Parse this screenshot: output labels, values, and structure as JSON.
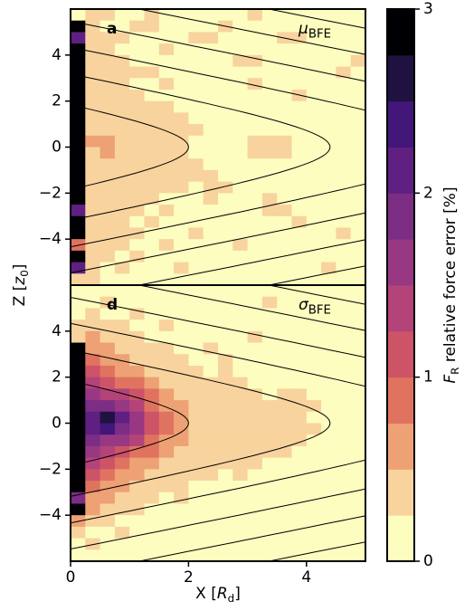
{
  "figure": {
    "xlabel": {
      "prefix": "X [",
      "symbol": "R",
      "subscript": "d",
      "suffix": "]"
    },
    "ylabel": {
      "prefix": "Z [",
      "symbol": "z",
      "subscript": "0",
      "suffix": "]"
    }
  },
  "chart_data": [
    {
      "type": "heatmap",
      "panel_label": "a",
      "annotation": {
        "symbol": "μ",
        "subscript": "BFE"
      },
      "xlim": [
        0,
        5
      ],
      "ylim": [
        -6,
        6
      ],
      "xticks": [
        0,
        2,
        4
      ],
      "show_xtick_labels": false,
      "yticks": [
        4,
        2,
        0,
        {
          "value": -2,
          "label": "−2"
        },
        {
          "value": -4,
          "label": "−4"
        }
      ],
      "x_edges": [
        0,
        0.25,
        0.5,
        0.75,
        1,
        1.25,
        1.5,
        1.75,
        2,
        2.25,
        2.5,
        2.75,
        3,
        3.25,
        3.5,
        3.75,
        4,
        4.25,
        4.5,
        4.75,
        5
      ],
      "z_edges": [
        6,
        5.5,
        5,
        4.5,
        4,
        3.5,
        3,
        2.5,
        2,
        1.5,
        1,
        0.5,
        0,
        -0.5,
        -1,
        -1.5,
        -2,
        -2.5,
        -3,
        -3.5,
        -4,
        -4.5,
        -5,
        -5.5,
        -6
      ],
      "values": [
        [
          0.1,
          0.35,
          0.35,
          0.1,
          0.1,
          0.35,
          0.1,
          0.1,
          0.1,
          0.1,
          0.1,
          0.1,
          0.35,
          0.1,
          0.1,
          0.1,
          0.1,
          0.1,
          0.1,
          0.1
        ],
        [
          3,
          0.35,
          0.1,
          0.1,
          0.35,
          0.35,
          0.1,
          0.1,
          0.1,
          0.1,
          0.35,
          0.1,
          0.1,
          0.1,
          0.1,
          0.1,
          0.1,
          0.1,
          0.1,
          0.1
        ],
        [
          2.1,
          0.35,
          0.35,
          0.35,
          0.1,
          0.1,
          0.1,
          0.1,
          0.35,
          0.35,
          0.1,
          0.1,
          0.1,
          0.1,
          0.35,
          0.35,
          0.1,
          0.1,
          0.1,
          0.1
        ],
        [
          3,
          0.35,
          0.35,
          0.1,
          0.1,
          0.1,
          0.35,
          0.1,
          0.1,
          0.1,
          0.1,
          0.1,
          0.1,
          0.1,
          0.1,
          0.1,
          0.1,
          0.1,
          0.1,
          0.1
        ],
        [
          3,
          0.35,
          0.35,
          0.35,
          0.1,
          0.1,
          0.1,
          0.1,
          0.1,
          0.1,
          0.1,
          0.35,
          0.35,
          0.1,
          0.1,
          0.1,
          0.1,
          0.1,
          0.1,
          0.35
        ],
        [
          3,
          0.35,
          0.35,
          0.35,
          0.35,
          0.35,
          0.1,
          0.1,
          0.1,
          0.1,
          0.1,
          0.1,
          0.1,
          0.1,
          0.1,
          0.1,
          0.1,
          0.1,
          0.35,
          0.1
        ],
        [
          3,
          0.35,
          0.35,
          0.35,
          0.1,
          0.1,
          0.35,
          0.1,
          0.1,
          0.1,
          0.1,
          0.1,
          0.35,
          0.1,
          0.1,
          0.1,
          0.1,
          0.1,
          0.1,
          0.1
        ],
        [
          3,
          0.35,
          0.35,
          0.35,
          0.35,
          0.1,
          0.1,
          0.1,
          0.1,
          0.1,
          0.1,
          0.1,
          0.1,
          0.1,
          0.1,
          0.35,
          0.1,
          0.1,
          0.1,
          0.1
        ],
        [
          3,
          0.35,
          0.35,
          0.35,
          0.35,
          0.35,
          0.35,
          0.1,
          0.1,
          0.1,
          0.1,
          0.1,
          0.1,
          0.1,
          0.1,
          0.1,
          0.1,
          0.1,
          0.1,
          0.1
        ],
        [
          3,
          0.35,
          0.35,
          0.35,
          0.35,
          0.35,
          0.35,
          0.35,
          0.1,
          0.1,
          0.1,
          0.1,
          0.1,
          0.1,
          0.1,
          0.1,
          0.1,
          0.1,
          0.1,
          0.1
        ],
        [
          3,
          0.35,
          0.35,
          0.35,
          0.35,
          0.35,
          0.35,
          0.35,
          0.35,
          0.1,
          0.1,
          0.1,
          0.1,
          0.1,
          0.1,
          0.1,
          0.1,
          0.1,
          0.1,
          0.1
        ],
        [
          3,
          0.6,
          0.6,
          0.35,
          0.35,
          0.35,
          0.35,
          0.35,
          0.1,
          0.1,
          0.1,
          0.1,
          0.35,
          0.35,
          0.35,
          0.1,
          0.1,
          0.1,
          0.1,
          0.1
        ],
        [
          3,
          0.35,
          0.6,
          0.35,
          0.35,
          0.35,
          0.35,
          0.35,
          0.1,
          0.1,
          0.1,
          0.1,
          0.35,
          0.35,
          0.35,
          0.1,
          0.1,
          0.1,
          0.1,
          0.1
        ],
        [
          3,
          0.35,
          0.35,
          0.35,
          0.35,
          0.35,
          0.35,
          0.35,
          0.35,
          0.1,
          0.1,
          0.1,
          0.1,
          0.1,
          0.1,
          0.1,
          0.1,
          0.1,
          0.1,
          0.1
        ],
        [
          3,
          0.35,
          0.35,
          0.35,
          0.35,
          0.35,
          0.35,
          0.35,
          0.35,
          0.35,
          0.1,
          0.1,
          0.1,
          0.1,
          0.1,
          0.1,
          0.1,
          0.1,
          0.1,
          0.1
        ],
        [
          3,
          0.35,
          0.35,
          0.35,
          0.35,
          0.35,
          0.35,
          0.35,
          0.1,
          0.35,
          0.35,
          0.1,
          0.1,
          0.1,
          0.1,
          0.1,
          0.1,
          0.1,
          0.1,
          0.1
        ],
        [
          3,
          0.35,
          0.35,
          0.35,
          0.35,
          0.35,
          0.1,
          0.1,
          0.1,
          0.35,
          0.1,
          0.1,
          0.1,
          0.35,
          0.1,
          0.1,
          0.1,
          0.1,
          0.1,
          0.1
        ],
        [
          2.1,
          0.35,
          0.35,
          0.35,
          0.35,
          0.1,
          0.35,
          0.1,
          0.1,
          0.1,
          0.1,
          0.1,
          0.1,
          0.35,
          0.35,
          0.1,
          0.1,
          0.1,
          0.1,
          0.1
        ],
        [
          3,
          0.35,
          0.35,
          0.35,
          0.1,
          0.35,
          0.1,
          0.1,
          0.1,
          0.1,
          0.1,
          0.1,
          0.1,
          0.1,
          0.1,
          0.35,
          0.1,
          0.1,
          0.1,
          0.1
        ],
        [
          3,
          0.35,
          0.35,
          0.35,
          0.35,
          0.1,
          0.1,
          0.1,
          0.35,
          0.1,
          0.1,
          0.1,
          0.1,
          0.1,
          0.1,
          0.1,
          0.1,
          0.1,
          0.35,
          0.1
        ],
        [
          0.9,
          0.35,
          0.35,
          0.35,
          0.1,
          0.1,
          0.35,
          0.1,
          0.1,
          0.1,
          0.1,
          0.35,
          0.1,
          0.1,
          0.1,
          0.1,
          0.1,
          0.1,
          0.1,
          0.1
        ],
        [
          3,
          0.35,
          0.35,
          0.1,
          0.35,
          0.1,
          0.1,
          0.1,
          0.1,
          0.1,
          0.1,
          0.1,
          0.1,
          0.1,
          0.1,
          0.1,
          0.1,
          0.1,
          0.1,
          0.1
        ],
        [
          2.1,
          0.35,
          0.1,
          0.35,
          0.1,
          0.1,
          0.1,
          0.35,
          0.1,
          0.1,
          0.1,
          0.1,
          0.1,
          0.1,
          0.1,
          0.1,
          0.1,
          0.35,
          0.1,
          0.1
        ],
        [
          0.35,
          0.35,
          0.1,
          0.1,
          0.1,
          0.1,
          0.1,
          0.1,
          0.1,
          0.1,
          0.1,
          0.1,
          0.1,
          0.1,
          0.1,
          0.1,
          0.1,
          0.1,
          0.1,
          0.1
        ]
      ]
    },
    {
      "type": "heatmap",
      "panel_label": "d",
      "annotation": {
        "symbol": "σ",
        "subscript": "BFE"
      },
      "xlim": [
        0,
        5
      ],
      "ylim": [
        -6,
        6
      ],
      "xticks": [
        0,
        2,
        4
      ],
      "show_xtick_labels": true,
      "yticks": [
        4,
        2,
        0,
        {
          "value": -2,
          "label": "−2"
        },
        {
          "value": -4,
          "label": "−4"
        }
      ],
      "x_edges": [
        0,
        0.25,
        0.5,
        0.75,
        1,
        1.25,
        1.5,
        1.75,
        2,
        2.25,
        2.5,
        2.75,
        3,
        3.25,
        3.5,
        3.75,
        4,
        4.25,
        4.5,
        4.75,
        5
      ],
      "z_edges": [
        6,
        5.5,
        5,
        4.5,
        4,
        3.5,
        3,
        2.5,
        2,
        1.5,
        1,
        0.5,
        0,
        -0.5,
        -1,
        -1.5,
        -2,
        -2.5,
        -3,
        -3.5,
        -4,
        -4.5,
        -5,
        -5.5,
        -6
      ],
      "values": [
        [
          0.1,
          0.1,
          0.1,
          0.1,
          0.1,
          0.1,
          0.1,
          0.1,
          0.1,
          0.1,
          0.1,
          0.1,
          0.1,
          0.1,
          0.1,
          0.1,
          0.1,
          0.1,
          0.1,
          0.1
        ],
        [
          0.1,
          0.1,
          0.35,
          0.1,
          0.1,
          0.1,
          0.1,
          0.1,
          0.1,
          0.1,
          0.1,
          0.1,
          0.1,
          0.35,
          0.1,
          0.1,
          0.1,
          0.1,
          0.1,
          0.1
        ],
        [
          0.1,
          0.35,
          0.1,
          0.1,
          0.35,
          0.1,
          0.1,
          0.1,
          0.1,
          0.1,
          0.1,
          0.1,
          0.1,
          0.1,
          0.1,
          0.1,
          0.1,
          0.1,
          0.1,
          0.1
        ],
        [
          0.35,
          0.35,
          0.35,
          0.35,
          0.1,
          0.1,
          0.35,
          0.1,
          0.1,
          0.1,
          0.1,
          0.1,
          0.1,
          0.1,
          0.1,
          0.1,
          0.1,
          0.1,
          0.1,
          0.1
        ],
        [
          0.35,
          0.6,
          0.35,
          0.35,
          0.35,
          0.1,
          0.1,
          0.1,
          0.1,
          0.1,
          0.1,
          0.1,
          0.35,
          0.1,
          0.1,
          0.1,
          0.1,
          0.1,
          0.1,
          0.1
        ],
        [
          3,
          0.6,
          0.6,
          0.35,
          0.35,
          0.35,
          0.35,
          0.1,
          0.1,
          0.35,
          0.1,
          0.1,
          0.1,
          0.1,
          0.1,
          0.1,
          0.1,
          0.1,
          0.1,
          0.1
        ],
        [
          3,
          0.9,
          0.6,
          0.6,
          0.35,
          0.35,
          0.35,
          0.35,
          0.1,
          0.1,
          0.35,
          0.1,
          0.1,
          0.1,
          0.1,
          0.1,
          0.1,
          0.1,
          0.1,
          0.1
        ],
        [
          3,
          1.1,
          0.9,
          0.6,
          0.6,
          0.35,
          0.35,
          0.35,
          0.35,
          0.1,
          0.35,
          0.1,
          0.1,
          0.1,
          0.1,
          0.1,
          0.1,
          0.1,
          0.1,
          0.1
        ],
        [
          3,
          1.4,
          1.1,
          0.9,
          0.9,
          0.6,
          0.35,
          0.35,
          0.35,
          0.35,
          0.35,
          0.35,
          0.1,
          0.1,
          0.1,
          0.1,
          0.1,
          0.1,
          0.1,
          0.1
        ],
        [
          3,
          1.6,
          1.4,
          1.4,
          1.1,
          0.9,
          0.6,
          0.35,
          0.35,
          0.35,
          0.35,
          0.35,
          0.35,
          0.1,
          0.35,
          0.35,
          0.1,
          0.1,
          0.1,
          0.1
        ],
        [
          3,
          1.9,
          1.9,
          1.6,
          1.4,
          0.9,
          0.6,
          0.6,
          0.35,
          0.35,
          0.35,
          0.35,
          0.35,
          0.35,
          0.35,
          0.35,
          0.35,
          0.1,
          0.1,
          0.1
        ],
        [
          3,
          2.1,
          2.6,
          2.1,
          1.6,
          1.1,
          0.9,
          0.6,
          0.35,
          0.35,
          0.35,
          0.35,
          0.35,
          0.35,
          0.35,
          0.35,
          0.1,
          0.1,
          0.1,
          0.1
        ],
        [
          3,
          2.1,
          2.4,
          1.9,
          1.6,
          1.1,
          0.9,
          0.6,
          0.35,
          0.35,
          0.35,
          0.35,
          0.35,
          0.35,
          0.35,
          0.35,
          0.35,
          0.1,
          0.1,
          0.1
        ],
        [
          3,
          1.9,
          1.6,
          1.6,
          1.4,
          0.9,
          0.6,
          0.6,
          0.35,
          0.35,
          0.35,
          0.35,
          0.35,
          0.35,
          0.35,
          0.35,
          0.1,
          0.1,
          0.1,
          0.1
        ],
        [
          3,
          1.6,
          1.4,
          1.1,
          0.9,
          0.9,
          0.6,
          0.35,
          0.35,
          0.35,
          0.35,
          0.35,
          0.35,
          0.35,
          0.35,
          0.1,
          0.1,
          0.1,
          0.1,
          0.1
        ],
        [
          3,
          1.4,
          1.1,
          0.9,
          0.6,
          0.6,
          0.35,
          0.35,
          0.35,
          0.35,
          0.35,
          0.35,
          0.35,
          0.1,
          0.1,
          0.1,
          0.1,
          0.1,
          0.1,
          0.1
        ],
        [
          3,
          1.1,
          0.9,
          0.6,
          0.6,
          0.35,
          0.35,
          0.35,
          0.35,
          0.35,
          0.1,
          0.35,
          0.1,
          0.1,
          0.1,
          0.1,
          0.1,
          0.1,
          0.1,
          0.1
        ],
        [
          3,
          0.9,
          0.6,
          0.6,
          0.35,
          0.35,
          0.35,
          0.35,
          0.1,
          0.1,
          0.1,
          0.1,
          0.1,
          0.1,
          0.1,
          0.1,
          0.1,
          0.1,
          0.1,
          0.1
        ],
        [
          1.9,
          0.6,
          0.6,
          0.35,
          0.35,
          0.35,
          0.1,
          0.35,
          0.1,
          0.1,
          0.1,
          0.1,
          0.1,
          0.1,
          0.1,
          0.1,
          0.1,
          0.1,
          0.1,
          0.1
        ],
        [
          3,
          0.6,
          0.35,
          0.35,
          0.35,
          0.1,
          0.1,
          0.1,
          0.1,
          0.1,
          0.1,
          0.1,
          0.1,
          0.1,
          0.1,
          0.1,
          0.1,
          0.1,
          0.1,
          0.1
        ],
        [
          0.6,
          0.35,
          0.35,
          0.1,
          0.1,
          0.1,
          0.1,
          0.1,
          0.1,
          0.1,
          0.1,
          0.1,
          0.1,
          0.1,
          0.1,
          0.1,
          0.1,
          0.1,
          0.1,
          0.1
        ],
        [
          0.35,
          0.1,
          0.1,
          0.35,
          0.1,
          0.1,
          0.1,
          0.1,
          0.1,
          0.1,
          0.1,
          0.1,
          0.1,
          0.1,
          0.1,
          0.1,
          0.1,
          0.1,
          0.1,
          0.1
        ],
        [
          0.1,
          0.35,
          0.1,
          0.1,
          0.1,
          0.1,
          0.1,
          0.1,
          0.1,
          0.1,
          0.1,
          0.1,
          0.1,
          0.1,
          0.1,
          0.1,
          0.1,
          0.1,
          0.1,
          0.1
        ],
        [
          0.1,
          0.1,
          0.1,
          0.1,
          0.1,
          0.1,
          0.1,
          0.1,
          0.1,
          0.1,
          0.1,
          0.1,
          0.1,
          0.1,
          0.1,
          0.1,
          0.1,
          0.1,
          0.1,
          0.1
        ]
      ]
    },
    {
      "type": "colorbar",
      "clim": [
        0,
        3
      ],
      "cticks": [
        0,
        1,
        2,
        3
      ],
      "colors": [
        "#fcfdbf",
        "#f8d39d",
        "#eda174",
        "#e0735f",
        "#cd5367",
        "#b4437a",
        "#983883",
        "#7c2d84",
        "#5f2081",
        "#43167a",
        "#201240",
        "#000004"
      ],
      "label": {
        "symbol": "F",
        "subscript": "R",
        "suffix": " relative force error [%]"
      }
    }
  ]
}
